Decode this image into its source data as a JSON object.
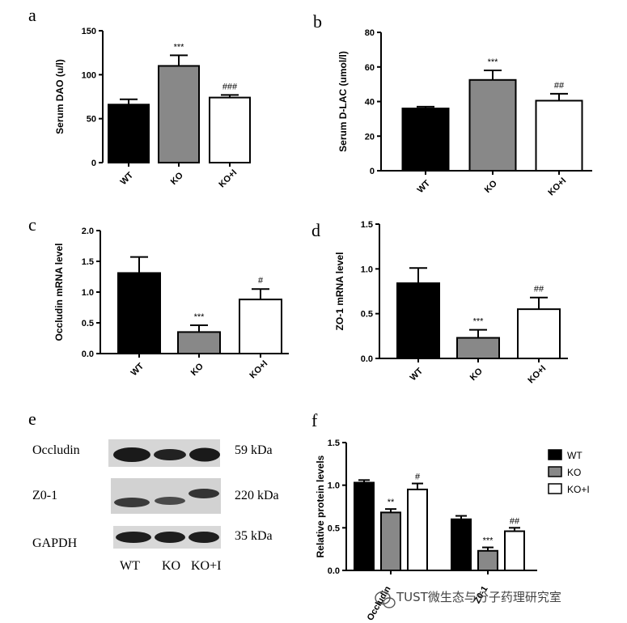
{
  "panels": {
    "a": {
      "letter": "a",
      "chart_data": {
        "type": "bar",
        "categories": [
          "WT",
          "KO",
          "KO+I"
        ],
        "values": [
          66,
          110,
          74
        ],
        "errors": [
          6,
          12,
          3
        ],
        "significance": [
          "",
          "***",
          "###"
        ],
        "ylabel": "Serum DAO (u/l)",
        "ylim": [
          0,
          150
        ],
        "yticks": [
          0,
          50,
          100,
          150
        ],
        "bar_colors": [
          "#000000",
          "#888888",
          "#ffffff"
        ]
      }
    },
    "b": {
      "letter": "b",
      "chart_data": {
        "type": "bar",
        "categories": [
          "WT",
          "KO",
          "KO+I"
        ],
        "values": [
          36,
          52.5,
          40.5
        ],
        "errors": [
          1,
          5.5,
          4
        ],
        "significance": [
          "",
          "***",
          "##"
        ],
        "ylabel": "Serum D-LAC (umol/l)",
        "ylim": [
          0,
          80
        ],
        "yticks": [
          0,
          20,
          40,
          60,
          80
        ],
        "bar_colors": [
          "#000000",
          "#888888",
          "#ffffff"
        ]
      }
    },
    "c": {
      "letter": "c",
      "chart_data": {
        "type": "bar",
        "categories": [
          "WT",
          "KO",
          "KO+I"
        ],
        "values": [
          1.31,
          0.35,
          0.88
        ],
        "errors": [
          0.26,
          0.11,
          0.17
        ],
        "significance": [
          "",
          "***",
          "#"
        ],
        "ylabel": "Occludin mRNA level",
        "ylim": [
          0,
          2.0
        ],
        "yticks": [
          0.0,
          0.5,
          1.0,
          1.5,
          2.0
        ],
        "bar_colors": [
          "#000000",
          "#888888",
          "#ffffff"
        ]
      }
    },
    "d": {
      "letter": "d",
      "chart_data": {
        "type": "bar",
        "categories": [
          "WT",
          "KO",
          "KO+I"
        ],
        "values": [
          0.84,
          0.23,
          0.55
        ],
        "errors": [
          0.17,
          0.09,
          0.13
        ],
        "significance": [
          "",
          "***",
          "##"
        ],
        "ylabel": "ZO-1 mRNA level",
        "ylim": [
          0,
          1.5
        ],
        "yticks": [
          0.0,
          0.5,
          1.0,
          1.5
        ],
        "bar_colors": [
          "#000000",
          "#888888",
          "#ffffff"
        ]
      }
    },
    "e": {
      "letter": "e",
      "blot": {
        "rows": [
          {
            "label": "Occludin",
            "size": "59 kDa"
          },
          {
            "label": "Z0-1",
            "size": "220 kDa"
          },
          {
            "label": "GAPDH",
            "size": "35 kDa"
          }
        ],
        "lanes": [
          "WT",
          "KO",
          "KO+I"
        ]
      }
    },
    "f": {
      "letter": "f",
      "chart_data": {
        "type": "bar",
        "categories": [
          "Occludin",
          "Z0-1"
        ],
        "series": [
          {
            "name": "WT",
            "values": [
              1.03,
              0.6
            ],
            "errors": [
              0.03,
              0.04
            ],
            "significance": [
              "",
              ""
            ],
            "color": "#000000"
          },
          {
            "name": "KO",
            "values": [
              0.68,
              0.23
            ],
            "errors": [
              0.04,
              0.04
            ],
            "significance": [
              "**",
              "***"
            ],
            "color": "#888888"
          },
          {
            "name": "KO+I",
            "values": [
              0.95,
              0.46
            ],
            "errors": [
              0.07,
              0.04
            ],
            "significance": [
              "#",
              "##"
            ],
            "color": "#ffffff"
          }
        ],
        "ylabel": "Relative protein levels",
        "ylim": [
          0,
          1.5
        ],
        "yticks": [
          0.0,
          0.5,
          1.0,
          1.5
        ],
        "legend": "right"
      }
    }
  },
  "watermark": {
    "text": "TUST微生态与分子药理研究室",
    "icon": "wechat-logo-icon"
  }
}
